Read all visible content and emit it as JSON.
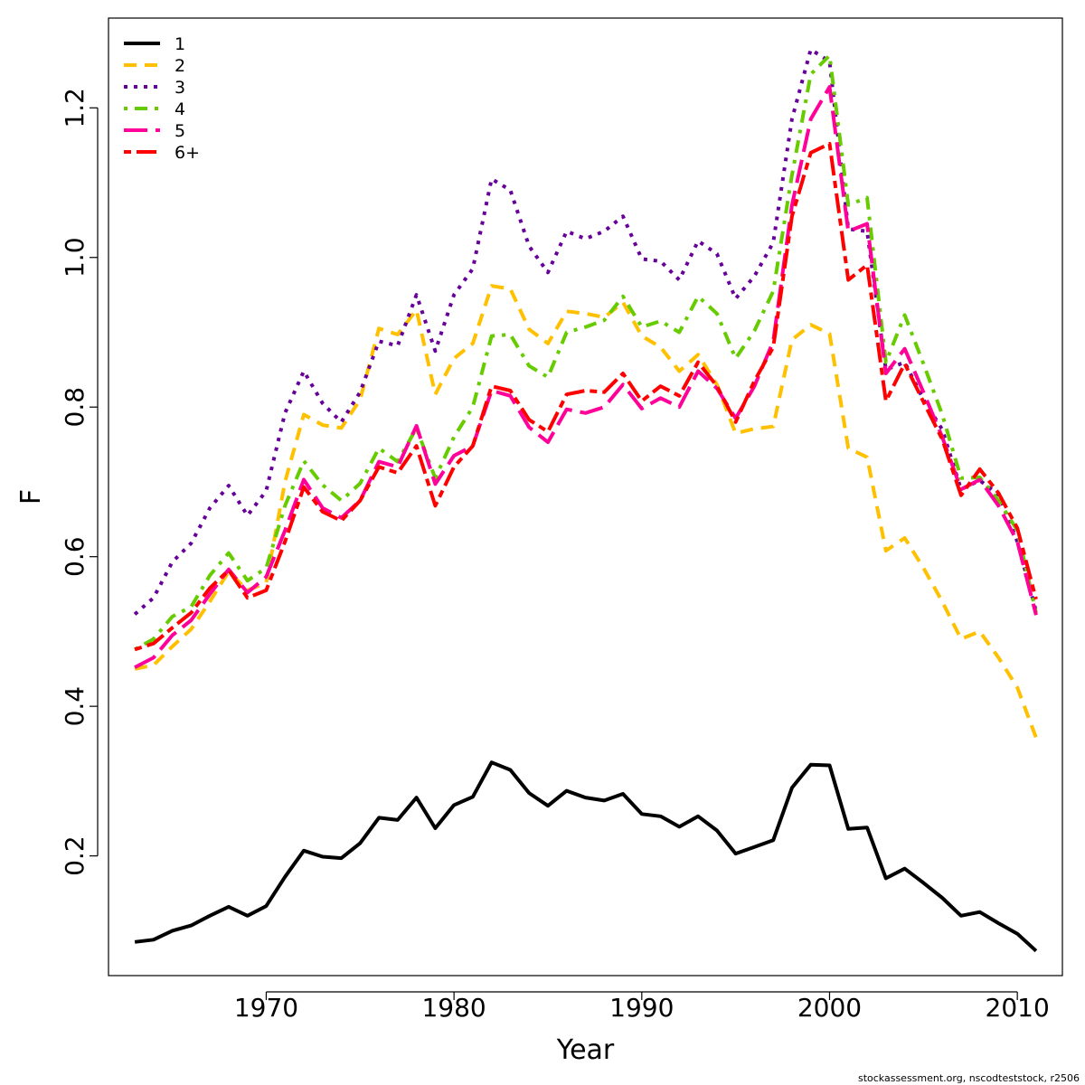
{
  "chart_data": {
    "type": "line",
    "xlabel": "Year",
    "ylabel": "F",
    "xlim": [
      1961.6,
      2012.4
    ],
    "ylim": [
      0.04,
      1.32
    ],
    "x_ticks": [
      1970,
      1980,
      1990,
      2000,
      2010
    ],
    "y_ticks": [
      0.2,
      0.4,
      0.6,
      0.8,
      1.0,
      1.2
    ],
    "x_tick_labels": [
      "1970",
      "1980",
      "1990",
      "2000",
      "2010"
    ],
    "y_tick_labels": [
      "0.2",
      "0.4",
      "0.6",
      "0.8",
      "1.0",
      "1.2"
    ],
    "grid": false,
    "legend_position": "top-left",
    "x": [
      1963,
      1964,
      1965,
      1966,
      1967,
      1968,
      1969,
      1970,
      1971,
      1972,
      1973,
      1974,
      1975,
      1976,
      1977,
      1978,
      1979,
      1980,
      1981,
      1982,
      1983,
      1984,
      1985,
      1986,
      1987,
      1988,
      1989,
      1990,
      1991,
      1992,
      1993,
      1994,
      1995,
      1996,
      1997,
      1998,
      1999,
      2000,
      2001,
      2002,
      2003,
      2004,
      2005,
      2006,
      2007,
      2008,
      2009,
      2010,
      2011
    ],
    "series": [
      {
        "name": "1",
        "color": "#000000",
        "dash": "solid",
        "values": [
          0.085,
          0.088,
          0.1,
          0.107,
          0.12,
          0.132,
          0.12,
          0.133,
          0.172,
          0.207,
          0.199,
          0.197,
          0.217,
          0.251,
          0.248,
          0.278,
          0.237,
          0.268,
          0.279,
          0.325,
          0.315,
          0.284,
          0.267,
          0.287,
          0.278,
          0.274,
          0.283,
          0.256,
          0.253,
          0.239,
          0.253,
          0.234,
          0.203,
          0.212,
          0.221,
          0.291,
          0.322,
          0.321,
          0.236,
          0.238,
          0.17,
          0.183,
          0.164,
          0.144,
          0.12,
          0.125,
          0.11,
          0.096,
          0.073
        ]
      },
      {
        "name": "2",
        "color": "#ffc000",
        "dash": "dashed",
        "values": [
          0.45,
          0.455,
          0.48,
          0.503,
          0.54,
          0.58,
          0.555,
          0.565,
          0.7,
          0.79,
          0.776,
          0.772,
          0.81,
          0.905,
          0.897,
          0.93,
          0.817,
          0.865,
          0.885,
          0.962,
          0.958,
          0.904,
          0.885,
          0.928,
          0.925,
          0.92,
          0.94,
          0.895,
          0.88,
          0.848,
          0.87,
          0.83,
          0.765,
          0.771,
          0.774,
          0.89,
          0.91,
          0.898,
          0.745,
          0.733,
          0.608,
          0.625,
          0.585,
          0.54,
          0.49,
          0.5,
          0.465,
          0.425,
          0.358
        ]
      },
      {
        "name": "3",
        "color": "#660099",
        "dash": "dotted",
        "values": [
          0.523,
          0.545,
          0.593,
          0.618,
          0.665,
          0.695,
          0.655,
          0.688,
          0.792,
          0.848,
          0.805,
          0.78,
          0.82,
          0.888,
          0.882,
          0.95,
          0.875,
          0.95,
          0.985,
          1.105,
          1.09,
          1.015,
          0.98,
          1.035,
          1.025,
          1.035,
          1.055,
          0.998,
          0.995,
          0.97,
          1.022,
          1.005,
          0.945,
          0.975,
          1.02,
          1.185,
          1.278,
          1.262,
          1.038,
          1.035,
          0.85,
          0.86,
          0.81,
          0.77,
          0.69,
          0.702,
          0.683,
          0.62,
          0.527
        ]
      },
      {
        "name": "4",
        "color": "#66cc00",
        "dash": "dashdot",
        "values": [
          0.476,
          0.49,
          0.52,
          0.533,
          0.575,
          0.605,
          0.568,
          0.585,
          0.668,
          0.728,
          0.696,
          0.675,
          0.698,
          0.745,
          0.727,
          0.772,
          0.705,
          0.76,
          0.8,
          0.895,
          0.897,
          0.855,
          0.84,
          0.9,
          0.907,
          0.916,
          0.948,
          0.907,
          0.915,
          0.9,
          0.948,
          0.925,
          0.865,
          0.902,
          0.955,
          1.11,
          1.245,
          1.27,
          1.07,
          1.08,
          0.86,
          0.923,
          0.858,
          0.79,
          0.705,
          0.706,
          0.675,
          0.635,
          0.525
        ]
      },
      {
        "name": "5",
        "color": "#ff0099",
        "dash": "longdash",
        "values": [
          0.452,
          0.465,
          0.495,
          0.515,
          0.55,
          0.583,
          0.552,
          0.573,
          0.635,
          0.703,
          0.665,
          0.652,
          0.675,
          0.727,
          0.72,
          0.775,
          0.697,
          0.735,
          0.748,
          0.822,
          0.815,
          0.773,
          0.753,
          0.797,
          0.792,
          0.8,
          0.83,
          0.798,
          0.812,
          0.8,
          0.848,
          0.825,
          0.785,
          0.828,
          0.888,
          1.07,
          1.185,
          1.228,
          1.035,
          1.045,
          0.845,
          0.878,
          0.82,
          0.76,
          0.69,
          0.703,
          0.668,
          0.62,
          0.522
        ]
      },
      {
        "name": "6+",
        "color": "#ff0000",
        "dash": "twodash",
        "values": [
          0.476,
          0.484,
          0.505,
          0.525,
          0.558,
          0.582,
          0.545,
          0.555,
          0.62,
          0.693,
          0.66,
          0.648,
          0.675,
          0.72,
          0.712,
          0.748,
          0.668,
          0.72,
          0.748,
          0.828,
          0.822,
          0.783,
          0.767,
          0.817,
          0.822,
          0.82,
          0.845,
          0.808,
          0.828,
          0.815,
          0.86,
          0.828,
          0.78,
          0.835,
          0.88,
          1.055,
          1.14,
          1.152,
          0.97,
          0.99,
          0.808,
          0.858,
          0.807,
          0.757,
          0.682,
          0.717,
          0.685,
          0.638,
          0.543
        ]
      }
    ]
  },
  "footer": {
    "credit": "stockassessment.org, nscodteststock, r2506"
  }
}
